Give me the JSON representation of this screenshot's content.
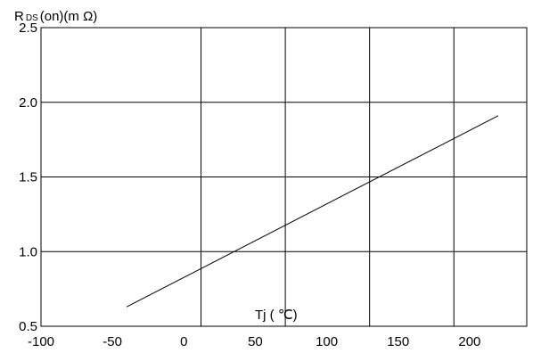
{
  "chart_data": {
    "type": "line",
    "title": "",
    "ylabel_parts": {
      "main": "R",
      "sub": "DS",
      "rest": "(on)(m  Ω)"
    },
    "xlabel": "Tj ( ℃)",
    "x_ticks": [
      "-100",
      "-50",
      "0",
      "50",
      "100",
      "150",
      "200"
    ],
    "y_ticks": [
      "0.5",
      "1.0",
      "1.5",
      "2.0",
      "2.5"
    ],
    "xlim": [
      -100,
      240
    ],
    "ylim": [
      0.5,
      2.5
    ],
    "grid": true,
    "series": [
      {
        "x": [
          -40,
          220
        ],
        "y": [
          0.63,
          1.91
        ]
      }
    ]
  }
}
